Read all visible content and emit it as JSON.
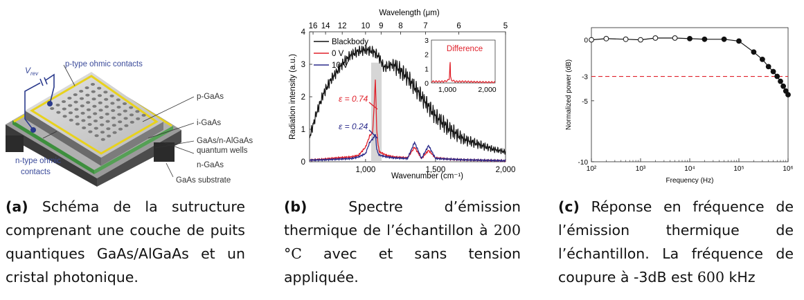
{
  "panel_a": {
    "labels": {
      "vrev": "V",
      "vrev_sub": "rev",
      "p_contacts": "p-type ohmic contacts",
      "p_gaas": "p-GaAs",
      "i_gaas": "i-GaAs",
      "qw1": "GaAs/n-AlGaAs",
      "qw2": "quantum wells",
      "n_gaas": "n-GaAs",
      "n_contacts1": "n-type ohmic",
      "n_contacts2": "contacts",
      "substrate": "GaAs substrate"
    },
    "colors": {
      "contact": "#e8d21c",
      "wire": "#2a3a8c",
      "qw": "#4caf50",
      "label": "#3a4a9a"
    }
  },
  "panel_b": {
    "top_axis_label": "Wavelength (μm)",
    "top_ticks": [
      "16",
      "14",
      "12",
      "10",
      "9",
      "8",
      "7",
      "6",
      "5"
    ],
    "x_label": "Wavenumber (cm⁻¹)",
    "y_label": "Radiation  intensity (a.u.)",
    "x_ticks": [
      "1,000",
      "1,500",
      "2,000"
    ],
    "y_ticks": [
      "0",
      "1",
      "2",
      "3",
      "4"
    ],
    "legend": [
      "Blackbody",
      "0 V",
      "10 V"
    ],
    "annot_red": "ε = 0.74",
    "annot_blue": "ε = 0.24",
    "inset_title": "Difference",
    "inset_x_ticks": [
      "1,000",
      "2,000"
    ],
    "inset_y_ticks": [
      "0",
      "1",
      "2",
      "3"
    ],
    "colors": {
      "blackbody": "#111111",
      "v0": "#e0202a",
      "v10": "#2a2a8a",
      "band": "#cccccc"
    }
  },
  "chart_data": [
    {
      "type": "line",
      "xlabel": "Wavenumber (cm⁻¹)",
      "ylabel": "Radiation  intensity (a.u.)",
      "xlim": [
        600,
        2000
      ],
      "ylim": [
        0,
        4
      ],
      "series": [
        {
          "name": "Blackbody",
          "x": [
            600,
            650,
            700,
            750,
            800,
            850,
            900,
            950,
            1000,
            1050,
            1080,
            1100,
            1130,
            1200,
            1250,
            1300,
            1350,
            1400,
            1450,
            1500,
            1550,
            1600,
            1700,
            1800,
            1900,
            2000
          ],
          "y": [
            0.75,
            1.5,
            2.1,
            2.5,
            2.8,
            3.1,
            3.3,
            3.4,
            3.45,
            3.4,
            3.3,
            3.2,
            2.9,
            3.0,
            2.8,
            2.6,
            2.3,
            2.0,
            1.7,
            1.4,
            1.2,
            1.0,
            0.7,
            0.55,
            0.4,
            0.3
          ]
        },
        {
          "name": "0 V",
          "x": [
            600,
            700,
            800,
            900,
            950,
            1000,
            1030,
            1050,
            1060,
            1070,
            1080,
            1090,
            1100,
            1150,
            1200,
            1300,
            1350,
            1400,
            1450,
            1500,
            1600,
            1700,
            1800,
            1900,
            2000
          ],
          "y": [
            0.05,
            0.08,
            0.12,
            0.15,
            0.2,
            0.45,
            0.8,
            0.9,
            1.6,
            2.55,
            1.0,
            0.5,
            0.3,
            0.2,
            0.15,
            0.12,
            0.45,
            0.1,
            0.35,
            0.12,
            0.08,
            0.06,
            0.05,
            0.04,
            0.03
          ]
        },
        {
          "name": "10 V",
          "x": [
            600,
            700,
            800,
            900,
            950,
            1000,
            1030,
            1050,
            1060,
            1070,
            1080,
            1090,
            1100,
            1150,
            1200,
            1300,
            1350,
            1400,
            1450,
            1500,
            1600,
            1700,
            1800,
            1900,
            2000
          ],
          "y": [
            0.05,
            0.06,
            0.08,
            0.1,
            0.15,
            0.25,
            0.6,
            0.7,
            0.75,
            0.85,
            0.4,
            0.25,
            0.2,
            0.15,
            0.12,
            0.1,
            0.6,
            0.1,
            0.5,
            0.1,
            0.08,
            0.06,
            0.05,
            0.04,
            0.03
          ]
        }
      ]
    },
    {
      "type": "line",
      "title": "Difference",
      "xlim": [
        600,
        2200
      ],
      "ylim": [
        0,
        3
      ],
      "series": [
        {
          "x": [
            600,
            900,
            1000,
            1050,
            1070,
            1080,
            1100,
            1200,
            1400,
            1600,
            2000,
            2200
          ],
          "y": [
            0.1,
            0.1,
            0.15,
            0.3,
            1.7,
            0.4,
            0.2,
            0.1,
            0.1,
            0.08,
            0.05,
            0.05
          ]
        }
      ]
    },
    {
      "type": "line",
      "xlabel": "Frequency (Hz)",
      "ylabel": "Normalized power (dB)",
      "xscale": "log",
      "xlim": [
        100,
        1000000
      ],
      "ylim": [
        -10,
        1
      ],
      "x_ticks": [
        "10²",
        "10³",
        "10⁴",
        "10⁵",
        "10⁶"
      ],
      "y_ticks": [
        "0",
        "-3",
        "-5",
        "-10"
      ],
      "threshold_db": -3,
      "series": [
        {
          "x": [
            100,
            200,
            500,
            1000,
            2000,
            5000,
            10000,
            20000,
            50000,
            100000,
            200000,
            300000,
            400000,
            500000,
            600000,
            700000,
            800000,
            900000,
            1000000
          ],
          "y": [
            0,
            0.1,
            0.05,
            0,
            0.15,
            0.15,
            0.1,
            0.05,
            0.05,
            -0.1,
            -1.0,
            -1.6,
            -2.2,
            -2.6,
            -3.0,
            -3.4,
            -3.8,
            -4.2,
            -4.5
          ]
        }
      ]
    }
  ],
  "captions": {
    "a": {
      "label": "(a)",
      "text": " Schéma de la sutructure comprenant une couche de puits quantiques GaAs/AlGaAs et un cristal photonique."
    },
    "b": {
      "label": "(b)",
      "text_before": " Spectre d’émission thermique de l’échantillon à ",
      "temp": "200 °C",
      "text_after": " avec et sans tension appliquée."
    },
    "c": {
      "label": "(c)",
      "text_before": " Réponse en fréquence de l’émission thermique de l’échantillon. La fréquence de coupure à -3dB est ",
      "freq": "600",
      "text_after": " kHz"
    }
  }
}
